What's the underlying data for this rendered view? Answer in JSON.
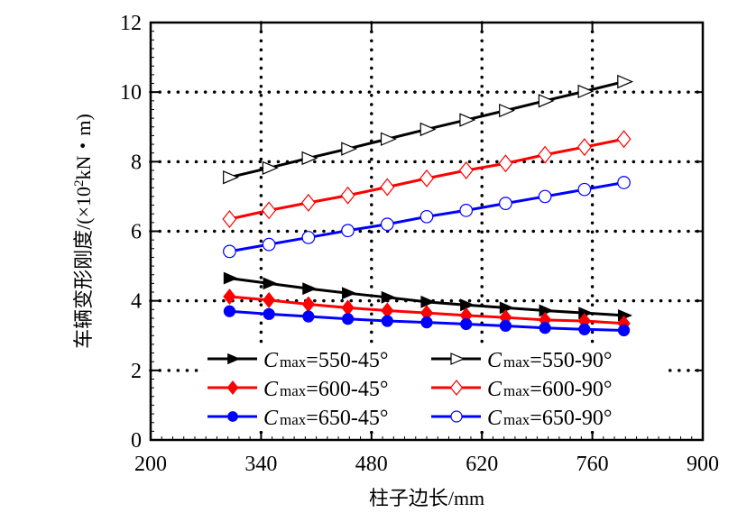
{
  "chart_data": {
    "type": "line",
    "title": "",
    "xlabel": "柱子边长/mm",
    "ylabel_prefix": "车辆变形刚度/(×10",
    "ylabel_sup": "2",
    "ylabel_suffix": "kN・m)",
    "xlim": [
      200,
      900
    ],
    "ylim": [
      0,
      12
    ],
    "xticks": [
      200,
      340,
      480,
      620,
      760,
      900
    ],
    "yticks": [
      0,
      2,
      4,
      6,
      8,
      10,
      12
    ],
    "xtick_labels": [
      "200",
      "340",
      "480",
      "620",
      "760",
      "900"
    ],
    "ytick_labels": [
      "0",
      "2",
      "4",
      "6",
      "8",
      "10",
      "12"
    ],
    "grid": true,
    "grid_style": "dotted",
    "legend_position": "bottom-center",
    "x": [
      300,
      350,
      400,
      450,
      500,
      550,
      600,
      650,
      700,
      750,
      800
    ],
    "series": [
      {
        "name": "Cmax=550-45°",
        "label_main": "C",
        "label_sub": "max",
        "label_rest": "=550-45°",
        "color": "#000000",
        "marker": "triangle-right",
        "filled": true,
        "values": [
          4.65,
          4.5,
          4.35,
          4.22,
          4.1,
          3.97,
          3.88,
          3.8,
          3.72,
          3.65,
          3.58
        ]
      },
      {
        "name": "Cmax=600-45°",
        "label_main": "C",
        "label_sub": "max",
        "label_rest": "=600-45°",
        "color": "#ff0000",
        "marker": "diamond",
        "filled": true,
        "values": [
          4.12,
          4.02,
          3.9,
          3.8,
          3.72,
          3.65,
          3.58,
          3.52,
          3.45,
          3.42,
          3.35
        ]
      },
      {
        "name": "Cmax=650-45°",
        "label_main": "C",
        "label_sub": "max",
        "label_rest": "=650-45°",
        "color": "#0000ff",
        "marker": "circle",
        "filled": true,
        "values": [
          3.7,
          3.62,
          3.55,
          3.48,
          3.42,
          3.38,
          3.33,
          3.28,
          3.22,
          3.18,
          3.15
        ]
      },
      {
        "name": "Cmax=550-90°",
        "label_main": "C",
        "label_sub": "max",
        "label_rest": "=550-90°",
        "color": "#000000",
        "marker": "triangle-right",
        "filled": false,
        "values": [
          7.55,
          7.82,
          8.1,
          8.37,
          8.65,
          8.93,
          9.2,
          9.47,
          9.75,
          10.02,
          10.3
        ]
      },
      {
        "name": "Cmax=600-90°",
        "label_main": "C",
        "label_sub": "max",
        "label_rest": "=600-90°",
        "color": "#ff0000",
        "marker": "diamond",
        "filled": false,
        "values": [
          6.35,
          6.6,
          6.82,
          7.03,
          7.27,
          7.52,
          7.75,
          7.95,
          8.2,
          8.42,
          8.65
        ]
      },
      {
        "name": "Cmax=650-90°",
        "label_main": "C",
        "label_sub": "max",
        "label_rest": "=650-90°",
        "color": "#0000ff",
        "marker": "circle",
        "filled": false,
        "values": [
          5.42,
          5.62,
          5.82,
          6.02,
          6.2,
          6.42,
          6.6,
          6.8,
          7.0,
          7.2,
          7.4
        ]
      }
    ]
  }
}
